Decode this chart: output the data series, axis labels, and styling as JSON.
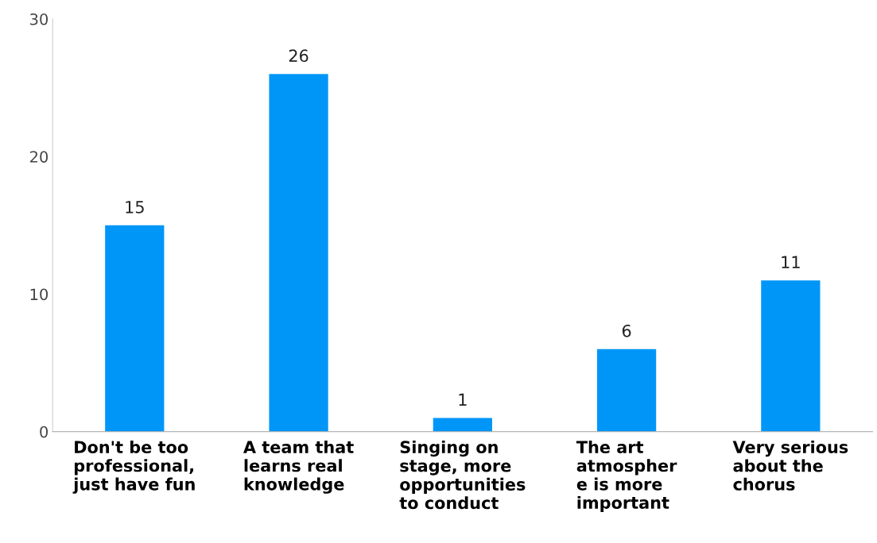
{
  "chart_data": {
    "type": "bar",
    "categories": [
      "Don't be too\nprofessional,\njust have fun",
      "A team that\nlearns real\nknowledge",
      "Singing on\nstage, more\nopportunities\nto conduct",
      "The art\natmospher\ne is more\nimportant",
      "Very serious\nabout the\nchorus"
    ],
    "values": [
      15,
      26,
      1,
      6,
      11
    ],
    "color": "#0096f8",
    "ylim": [
      0,
      30
    ],
    "yticks": [
      0,
      10,
      20,
      30
    ],
    "data_labels": true,
    "grid": false
  }
}
